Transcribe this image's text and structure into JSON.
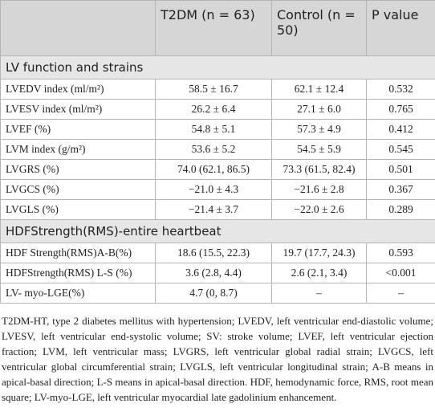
{
  "table": {
    "header": [
      "T2DM (n = 63)",
      "Control (n = 50)",
      "P value"
    ],
    "sections": [
      {
        "title": "LV function and strains",
        "rows": [
          [
            "LVEDV index (ml/m²)",
            "58.5 ± 16.7",
            "62.1 ± 12.4",
            "0.532"
          ],
          [
            "LVESV index (ml/m²)",
            "26.2 ± 6.4",
            "27.1 ± 6.0",
            "0.765"
          ],
          [
            "LVEF (%)",
            "54.8 ± 5.1",
            "57.3 ± 4.9",
            "0.412"
          ],
          [
            "LVM index (g/m²)",
            "53.6 ± 5.2",
            "54.5 ± 5.9",
            "0.545"
          ],
          [
            "LVGRS (%)",
            "74.0 (62.1, 86.5)",
            "73.3 (61.5, 82.4)",
            "0.501"
          ],
          [
            "LVGCS (%)",
            "−21.0 ± 4.3",
            "−21.6 ± 2.8",
            "0.367"
          ],
          [
            "LVGLS (%)",
            "−21.4 ± 3.7",
            "−22.0 ± 2.6",
            "0.289"
          ]
        ]
      },
      {
        "title": "HDFStrength(RMS)-entire heartbeat",
        "rows": [
          [
            "HDF Strength(RMS)A-B(%)",
            "18.6 (15.5, 22.3)",
            "19.7 (17.7, 24.3)",
            "0.593"
          ],
          [
            "HDFStrength(RMS) L-S (%)",
            "3.6 (2.8, 4.4)",
            "2.6 (2.1, 3.4)",
            "<0.001"
          ],
          [
            "LV- myo-LGE(%)",
            "4.7 (0, 8.7)",
            "–",
            "–"
          ]
        ]
      }
    ]
  },
  "footnote": "T2DM-HT, type 2 diabetes mellitus with hypertension; LVEDV, left ventricular end-diastolic volume; LVESV, left ventricular end-systolic volume; SV: stroke volume; LVEF, left ventricular ejection fraction; LVM, left ventricular mass; LVGRS, left ventricular global radial strain; LVGCS, left ventricular global circumferential strain; LVGLS, left ventricular longitudinal strain; A-B means in apical-basal direction; L-S means in apical-basal direction. HDF, hemodynamic force, RMS, root mean square; LV-myo-LGE, left ventricular myocardial late gadolinium enhancement."
}
